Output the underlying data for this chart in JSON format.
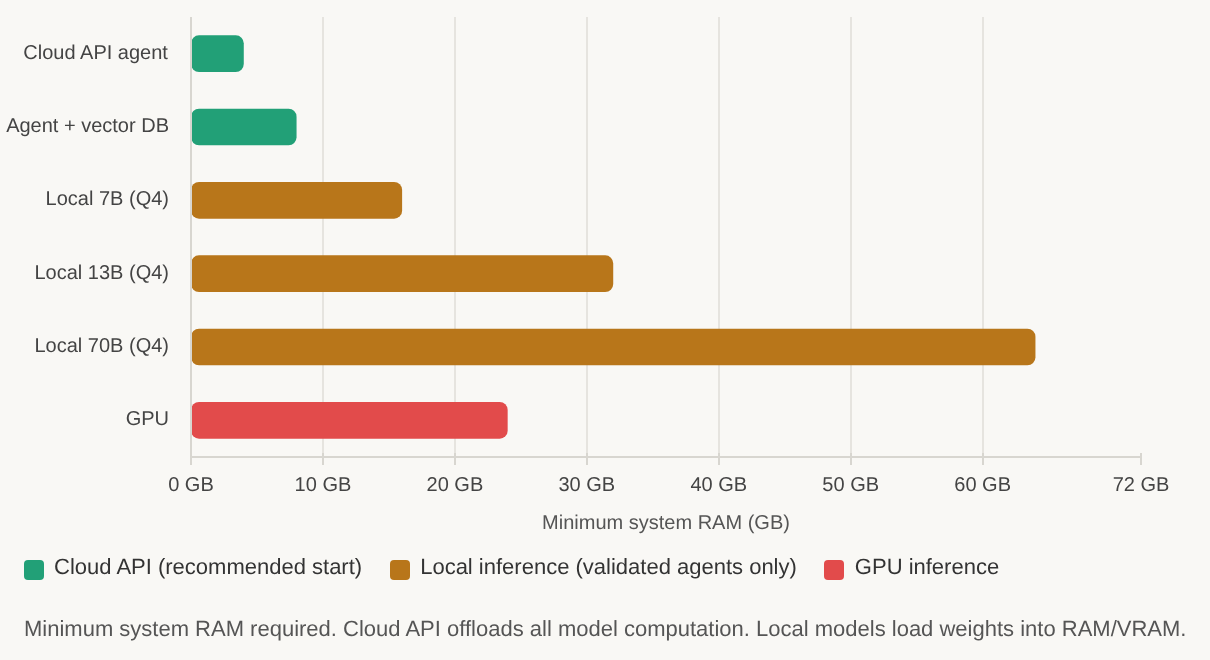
{
  "chart_data": {
    "type": "bar",
    "orientation": "horizontal",
    "categories": [
      "Cloud API agent",
      "Agent + vector DB",
      "Local 7B (Q4)",
      "Local 13B (Q4)",
      "Local 70B (Q4)",
      "GPU"
    ],
    "series": [
      {
        "name": "Cloud API (recommended start)",
        "color": "#22a077",
        "values": [
          4,
          8,
          null,
          null,
          null,
          null
        ]
      },
      {
        "name": "Local inference (validated agents only)",
        "color": "#b8761a",
        "values": [
          null,
          null,
          16,
          32,
          64,
          null
        ]
      },
      {
        "name": "GPU inference",
        "color": "#e24b4b",
        "values": [
          null,
          null,
          null,
          null,
          null,
          24
        ]
      }
    ],
    "xlabel": "Minimum system RAM (GB)",
    "xlim": [
      0,
      72
    ],
    "xticks": [
      {
        "value": 0,
        "label": "0 GB"
      },
      {
        "value": 10,
        "label": "10 GB"
      },
      {
        "value": 20,
        "label": "20 GB"
      },
      {
        "value": 30,
        "label": "30 GB"
      },
      {
        "value": 40,
        "label": "40 GB"
      },
      {
        "value": 50,
        "label": "50 GB"
      },
      {
        "value": 60,
        "label": "60 GB"
      },
      {
        "value": 72,
        "label": "72 GB"
      }
    ],
    "grid": "x",
    "legend": "bottom",
    "annotations": [
      "Minimum system RAM required. Cloud API offloads all model computation. Local models load weights into RAM/VRAM."
    ]
  }
}
